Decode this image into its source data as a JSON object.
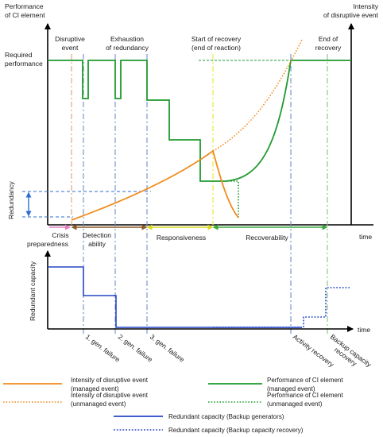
{
  "top_panel": {
    "y_axis_title": [
      "Performance",
      "of CI element"
    ],
    "y2_axis_title": [
      "Intensity",
      "of disruptive event"
    ],
    "x_axis_label": "time",
    "required_performance": [
      "Required",
      "performance"
    ],
    "redundancy": "Redundancy",
    "events": {
      "disruptive": [
        "Disruptive",
        "event"
      ],
      "exhaustion": [
        "Exhaustion",
        "of redundancy"
      ],
      "recovery_start": [
        "Start of recovery",
        "(end of reaction)"
      ],
      "recovery_end": [
        "End of",
        "recovery"
      ]
    },
    "phases": {
      "crisis": [
        "Crisis",
        "preparedness"
      ],
      "detection": [
        "Detection",
        "ability"
      ],
      "responsiveness": "Responsiveness",
      "recoverability": "Recoverability"
    }
  },
  "bottom_panel": {
    "y_axis_title": "Redundant capacity",
    "x_axis_label": "time",
    "tick_labels": {
      "gen1": "1. gen. failure",
      "gen2": "2. gen. failure",
      "gen3": "3. gen. failure",
      "activity": "Activity recovery",
      "backup": [
        "Backup capacity",
        "recovery"
      ]
    }
  },
  "legend": {
    "intensity_managed": [
      "Intensity of disruptive event",
      "(managed event)"
    ],
    "intensity_unmanaged": [
      "Intensity of disruptive event",
      "(unmanaged event)"
    ],
    "performance_managed": [
      "Performance of CI element",
      "(managed event)"
    ],
    "performance_unmanaged": [
      "Performance of CI element",
      "(unmanaged event)"
    ],
    "redundant_generators": "Redundant capacity (Backup generators)",
    "redundant_recovery": "Redundant capacity (Backup capacity recovery)"
  },
  "colors": {
    "intensity": "#f08c1e",
    "performance": "#1f9a2e",
    "capacity": "#2446c8",
    "disruptive_marker": "#e0a070",
    "gen_marker": "#6b8fc8",
    "recovery_start_marker": "#e6e62a",
    "recovery_end_marker": "#88c080"
  }
}
